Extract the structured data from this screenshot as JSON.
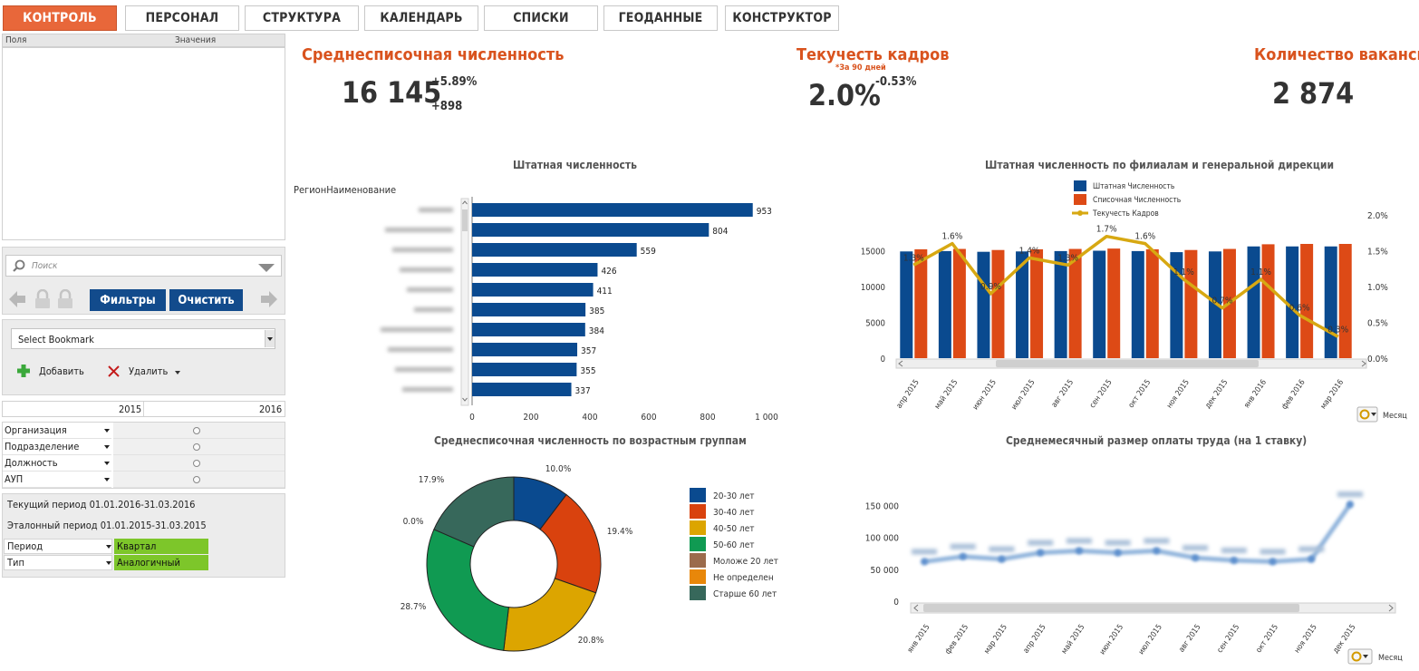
{
  "tabs": [
    {
      "label": "КОНТРОЛЬ",
      "active": true
    },
    {
      "label": "ПЕРСОНАЛ",
      "active": false
    },
    {
      "label": "СТРУКТУРА",
      "active": false
    },
    {
      "label": "КАЛЕНДАРЬ",
      "active": false
    },
    {
      "label": "СПИСКИ",
      "active": false
    },
    {
      "label": "ГЕОДАННЫЕ",
      "active": false
    },
    {
      "label": "КОНСТРУКТОР",
      "active": false
    }
  ],
  "fields_table": {
    "col_fields": "Поля",
    "col_values": "Значения"
  },
  "search": {
    "placeholder": "Поиск"
  },
  "buttons": {
    "filters": "Фильтры",
    "clear": "Очистить",
    "add": "Добавить",
    "delete": "Удалить"
  },
  "bookmark": {
    "selected": "Select Bookmark"
  },
  "years": {
    "start": "2015",
    "end": "2016"
  },
  "filters": [
    "Организация",
    "Подразделение",
    "Должность",
    "АУП"
  ],
  "periods": {
    "current": "Текущий период 01.01.2016-31.03.2016",
    "reference": "Эталонный период 01.01.2015-31.03.2015",
    "rows": [
      {
        "label": "Период",
        "value": "Квартал"
      },
      {
        "label": "Тип",
        "value": "Аналогичный"
      }
    ]
  },
  "colors": {
    "accent": "#e8673a",
    "kpi_title": "#d9531e",
    "navy": "#124b8c",
    "bar_blue": "#0a4a8f",
    "bar_red": "#dd4a16",
    "line_gold": "#d7a812",
    "select_green": "#7dc62a"
  },
  "kpis": [
    {
      "title": "Среднесписочная численность",
      "value": "16 145",
      "delta_pct": "+5.89%",
      "delta_abs": "+898"
    },
    {
      "title": "Текучесть кадров",
      "note": "*За 90 дней",
      "value": "2.0%",
      "delta_pct": "-0.53%"
    },
    {
      "title": "Количество вакансий",
      "value": "2 874"
    }
  ],
  "chart_data": [
    {
      "type": "bar",
      "orientation": "horizontal",
      "title": "Штатная численность",
      "dimension_label": "РегионНаименование",
      "values": [
        953,
        804,
        559,
        426,
        411,
        385,
        384,
        357,
        355,
        337
      ],
      "x_ticks": [
        "0",
        "200",
        "400",
        "600",
        "800",
        "1 000"
      ],
      "xlim": [
        0,
        1000
      ]
    },
    {
      "type": "bar",
      "title": "Штатная численность по филиалам и генеральной дирекции",
      "categories": [
        "апр 2015",
        "май 2015",
        "июн 2015",
        "июл 2015",
        "авг 2015",
        "сен 2015",
        "окт 2015",
        "ноя 2015",
        "дек 2015",
        "янв 2016",
        "фев 2016",
        "мар 2016"
      ],
      "series": [
        {
          "name": "Штатная Численность",
          "values": [
            14900,
            14950,
            14850,
            14900,
            14950,
            15000,
            14950,
            14800,
            14900,
            15600,
            15600,
            15600
          ]
        },
        {
          "name": "Списочная Численность",
          "values": [
            15200,
            15250,
            15100,
            15200,
            15250,
            15300,
            15200,
            15100,
            15250,
            15900,
            15950,
            15950
          ]
        },
        {
          "name": "Текучесть Кадров",
          "axis": "right",
          "values": [
            1.3,
            1.6,
            0.9,
            1.4,
            1.3,
            1.7,
            1.6,
            1.1,
            0.7,
            1.1,
            0.6,
            0.3
          ],
          "labels": [
            "1.3%",
            "1.6%",
            "0.9%",
            "1.4%",
            "1.3%",
            "1.7%",
            "1.6%",
            "1.1%",
            "0.7%",
            "1.1%",
            "0.6%",
            "0.3%"
          ]
        }
      ],
      "y_ticks": [
        "0",
        "5000",
        "10000",
        "15000"
      ],
      "y2_ticks": [
        "0.0%",
        "0.5%",
        "1.0%",
        "1.5%",
        "2.0%"
      ],
      "ylim": [
        0,
        20000
      ],
      "y2lim": [
        0,
        2.0
      ],
      "dimension_button": "Месяц",
      "legend": "top"
    },
    {
      "type": "pie",
      "title": "Среднесписочная численность по возрастным группам",
      "categories": [
        "20-30 лет",
        "30-40 лет",
        "40-50 лет",
        "50-60 лет",
        "Моложе 20 лет",
        "Не определен",
        "Старше 60 лет"
      ],
      "values": [
        10.0,
        19.4,
        20.8,
        28.7,
        0.0,
        0.0,
        17.9
      ],
      "labels": [
        "10.0%",
        "19.4%",
        "20.8%",
        "28.7%",
        "0.0%",
        "",
        "17.9%"
      ],
      "colors": [
        "#0a4a8f",
        "#d9420e",
        "#dca500",
        "#109a52",
        "#9b6b4c",
        "#e8870a",
        "#37685b"
      ],
      "legend": "right"
    },
    {
      "type": "line",
      "title": "Среднемесячный размер оплаты труда (на 1 ставку)",
      "categories": [
        "янв 2015",
        "фев 2015",
        "мар 2015",
        "апр 2015",
        "май 2015",
        "июн 2015",
        "июл 2015",
        "авг 2015",
        "сен 2015",
        "окт 2015",
        "ноя 2015",
        "дек 2015"
      ],
      "values": [
        62000,
        70000,
        66000,
        76000,
        79000,
        76000,
        79000,
        68000,
        64000,
        62000,
        66000,
        152000
      ],
      "y_ticks": [
        "0",
        "50 000",
        "100 000",
        "150 000"
      ],
      "ylim": [
        0,
        175000
      ],
      "dimension_button": "Месяц"
    }
  ]
}
